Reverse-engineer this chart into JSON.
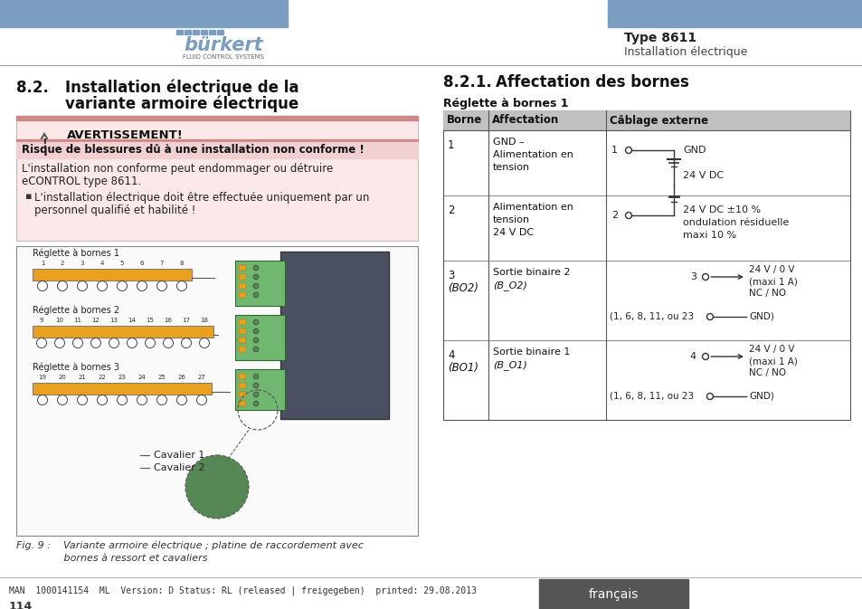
{
  "page_bg": "#ffffff",
  "header_bar_color": "#7b9dc0",
  "burkert_text": "bürkert",
  "burkert_sub": "FLUID CONTROL SYSTEMS",
  "header_title": "Type 8611",
  "header_subtitle": "Installation électrique",
  "section_num": "8.2.",
  "section_title1": "Installation électrique de la",
  "section_title2": "variante armoire électrique",
  "warning_title": "AVERTISSEMENT!",
  "warning_box_bg": "#fce8e8",
  "warning_bar_color": "#c08080",
  "warning_bold_text": "Risque de blessures dû à une installation non conforme !",
  "warning_text1": "L'installation non conforme peut endommager ou détruire",
  "warning_text2": "eCONTROL type 8611.",
  "warning_bullet": "L'installation électrique doit être effectuée uniquement par un",
  "warning_bullet2": "personnel qualifié et habilité !",
  "connector_label1": "Réglette à bornes 1",
  "connector_label2": "Réglette à bornes 2",
  "connector_label3": "Réglette à bornes 3",
  "connector_nums1": [
    "1",
    "2",
    "3",
    "4",
    "5",
    "6",
    "7",
    "8"
  ],
  "connector_nums2": [
    "9",
    "10",
    "11",
    "12",
    "13",
    "14",
    "15",
    "16",
    "17",
    "18"
  ],
  "connector_nums3": [
    "19",
    "20",
    "21",
    "22",
    "23",
    "24",
    "25",
    "26",
    "27"
  ],
  "cavalier1": "Cavalier 1",
  "cavalier2": "Cavalier 2",
  "connector_bar_color": "#e8a020",
  "fig_caption1": "Fig. 9 :    Variante armoire électrique ; platine de raccordement avec",
  "fig_caption2": "               bornes à ressort et cavaliers",
  "right_section_title1": "8.2.1.",
  "right_section_title2": "Affectation des bornes",
  "right_subtitle": "Réglette à bornes 1",
  "table_header_bg": "#c0c0c0",
  "table_col1": "Borne",
  "table_col2": "Affectation",
  "table_col3": "Câblage externe",
  "row1_borne": "1",
  "row1_affect": [
    "GND –",
    "Alimentation en",
    "tension"
  ],
  "row2_borne": "2",
  "row2_affect": [
    "Alimentation en",
    "tension",
    "24 V DC"
  ],
  "row3_borne1": "3",
  "row3_borne2": "(BO2)",
  "row3_affect1": "Sortie binaire 2",
  "row3_affect2": "(B_O2)",
  "row4_borne1": "4",
  "row4_borne2": "(BO1)",
  "row4_affect1": "Sortie binaire 1",
  "row4_affect2": "(B_O1)",
  "cable_gnd": "GND",
  "cable_24vdc": "24 V DC",
  "cable_24vdc_spec": "24 V DC ±10 %",
  "cable_ondulation": "ondulation résiduelle",
  "cable_maxi10": "maxi 10 %",
  "cable_24v0v": "24 V / 0 V",
  "cable_maxi1a": "(maxi 1 A)",
  "cable_ncno": "NC / NO",
  "cable_gnd_ref": "(1, 6, 8, 11, ou 23",
  "cable_gnd_end": "GND)",
  "footer_text": "MAN  1000141154  ML  Version: D Status: RL (released | freigegeben)  printed: 29.08.2013",
  "footer_page": "114",
  "footer_lang_bg": "#555555",
  "footer_lang_text": "français"
}
